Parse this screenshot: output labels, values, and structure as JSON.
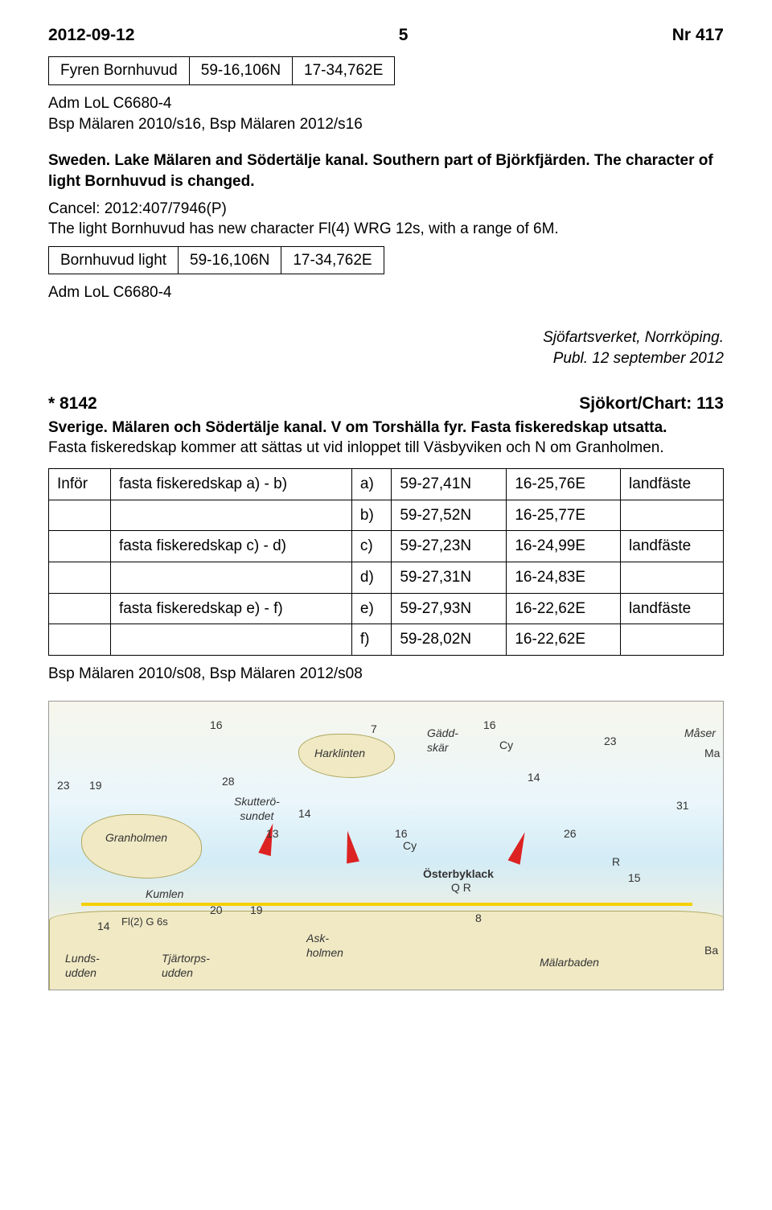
{
  "header": {
    "date": "2012-09-12",
    "page": "5",
    "issue": "Nr 417"
  },
  "fyren_table": {
    "row": [
      "Fyren Bornhuvud",
      "59-16,106N",
      "17-34,762E"
    ]
  },
  "refs1": "Adm LoL C6680-4\nBsp Mälaren 2010/s16, Bsp Mälaren 2012/s16",
  "english": {
    "line1": "Sweden. Lake Mälaren and Södertälje kanal. Southern part of Björkfjärden. The character of light Bornhuvud is changed.",
    "cancel": "Cancel: 2012:407/7946(P)",
    "desc": "The light Bornhuvud has new character Fl(4) WRG 12s, with a range of 6M."
  },
  "light_table": {
    "row": [
      "Bornhuvud light",
      "59-16,106N",
      "17-34,762E"
    ]
  },
  "refs2": "Adm LoL C6680-4",
  "attribution": {
    "source": "Sjöfartsverket, Norrköping.",
    "publ": "Publ. 12 september 2012"
  },
  "notice": {
    "id": "* 8142",
    "chart": "Sjökort/Chart: 113",
    "title": "Sverige. Mälaren och Södertälje kanal. V om Torshälla fyr. Fasta fiskeredskap utsatta.",
    "body": "Fasta fiskeredskap kommer att sättas ut vid inloppet till Väsbyviken och N om Granholmen."
  },
  "coord_table": {
    "rows": [
      [
        "Inför",
        "fasta fiskeredskap a) - b)",
        "a)",
        "59-27,41N",
        "16-25,76E",
        "landfäste"
      ],
      [
        "",
        "",
        "b)",
        "59-27,52N",
        "16-25,77E",
        ""
      ],
      [
        "",
        "fasta fiskeredskap c) - d)",
        "c)",
        "59-27,23N",
        "16-24,99E",
        "landfäste"
      ],
      [
        "",
        "",
        "d)",
        "59-27,31N",
        "16-24,83E",
        ""
      ],
      [
        "",
        "fasta fiskeredskap e) - f)",
        "e)",
        "59-27,93N",
        "16-22,62E",
        "landfäste"
      ],
      [
        "",
        "",
        "f)",
        "59-28,02N",
        "16-22,62E",
        ""
      ]
    ]
  },
  "refs3": "Bsp Mälaren 2010/s08, Bsp Mälaren 2012/s08",
  "map_labels": {
    "granholmen": "Granholmen",
    "kumlen": "Kumlen",
    "skutter": "Skutterö-\nsundet",
    "harklinten": "Harklinten",
    "gaddskar": "Gädd-\nskär",
    "osterby": "Österbyklack",
    "qr": "Q R",
    "lunds": "Lunds-\nudden",
    "tjartorps": "Tjärtorps-\nudden",
    "ask": "Ask-\nholmen",
    "malarbaden": "Mälarbaden",
    "maser": "Måser",
    "fl2": "Fl(2) G 6s",
    "cy1": "Cy",
    "cy2": "Cy",
    "n13": "13",
    "n14a": "14",
    "n14b": "14",
    "n14c": "14",
    "n16a": "16",
    "n16b": "16",
    "n16c": "16",
    "n7": "7",
    "n23a": "23",
    "n23b": "23",
    "n19a": "19",
    "n19b": "19",
    "n28": "28",
    "n31": "31",
    "n26": "26",
    "n15": "15",
    "n20": "20",
    "n8": "8",
    "ma": "Ma",
    "ba": "Ba",
    "r": "R"
  }
}
